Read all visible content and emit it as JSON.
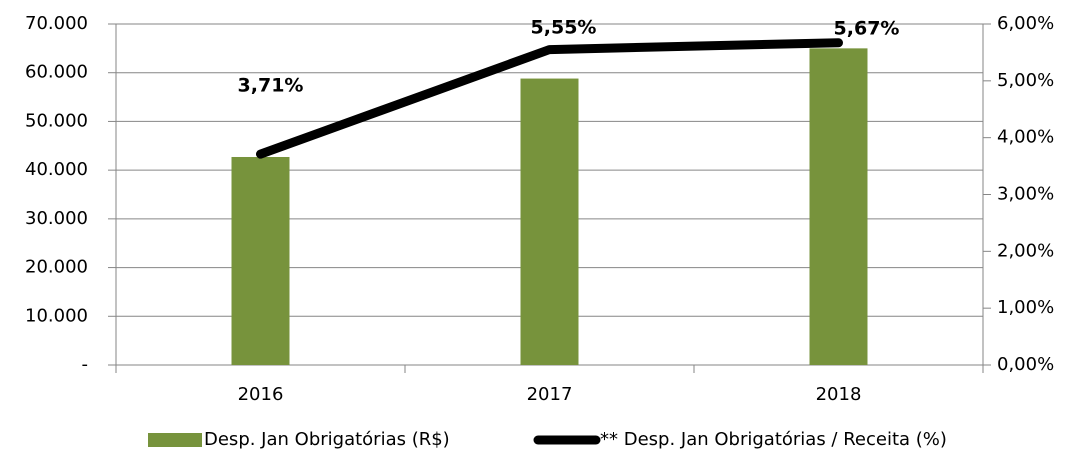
{
  "chart_data": {
    "type": "bar-line",
    "categories": [
      "2016",
      "2017",
      "2018"
    ],
    "series": [
      {
        "name": "Desp. Jan Obrigatórias (R$)",
        "type": "bar",
        "color": "#77933c",
        "values": [
          42700,
          58800,
          65000
        ]
      },
      {
        "name": "** Desp. Jan Obrigatórias / Receita (%)",
        "type": "line",
        "axis": "y2",
        "color": "#000000",
        "values": [
          3.71,
          5.55,
          5.67
        ],
        "value_labels": [
          "3,71%",
          "5,55%",
          "5,67%"
        ]
      }
    ],
    "ylim": [
      0,
      70000
    ],
    "yticks": [
      {
        "value": 0,
        "label": "-"
      },
      {
        "value": 10000,
        "label": "10.000"
      },
      {
        "value": 20000,
        "label": "20.000"
      },
      {
        "value": 30000,
        "label": "30.000"
      },
      {
        "value": 40000,
        "label": "40.000"
      },
      {
        "value": 50000,
        "label": "50.000"
      },
      {
        "value": 60000,
        "label": "60.000"
      },
      {
        "value": 70000,
        "label": "70.000"
      }
    ],
    "y2lim": [
      0,
      6
    ],
    "y2ticks": [
      {
        "value": 0,
        "label": "0,00%"
      },
      {
        "value": 1,
        "label": "1,00%"
      },
      {
        "value": 2,
        "label": "2,00%"
      },
      {
        "value": 3,
        "label": "3,00%"
      },
      {
        "value": 4,
        "label": "4,00%"
      },
      {
        "value": 5,
        "label": "5,00%"
      },
      {
        "value": 6,
        "label": "6,00%"
      }
    ],
    "grid": true,
    "legend": "bottom"
  }
}
